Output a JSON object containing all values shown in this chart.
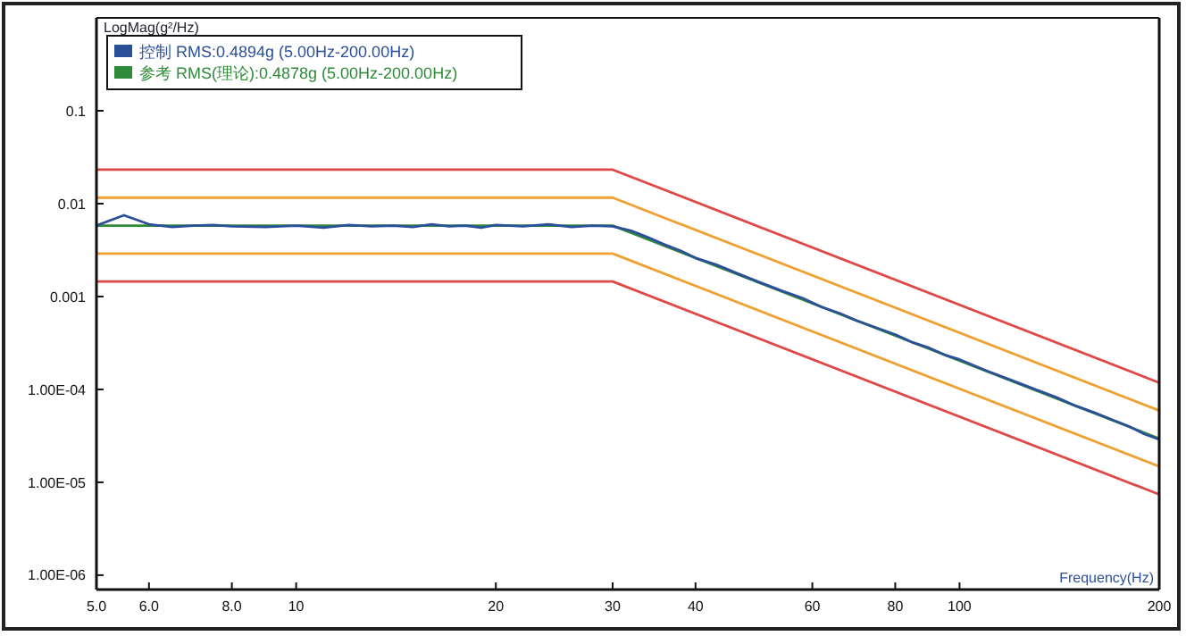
{
  "chart_data": {
    "type": "line",
    "xlabel": "Frequency(Hz)",
    "ylabel": "LogMag(g²/Hz)",
    "log": "xy",
    "xlim": [
      5,
      200
    ],
    "ylim": [
      7e-07,
      1
    ],
    "xticks": [
      {
        "value": 5,
        "label": "5.0"
      },
      {
        "value": 6,
        "label": "6.0"
      },
      {
        "value": 8,
        "label": "8.0"
      },
      10,
      20,
      30,
      40,
      60,
      80,
      100,
      200
    ],
    "yticks": [
      0.1,
      0.01,
      0.001,
      {
        "value": 0.0001,
        "label": "1.00E-04"
      },
      {
        "value": 1e-05,
        "label": "1.00E-05"
      },
      {
        "value": 1e-06,
        "label": "1.00E-06"
      }
    ],
    "grid": false,
    "legend": "top left",
    "marker": "none",
    "line_style": "solid",
    "series": [
      {
        "color": "#e04848",
        "x": [
          5,
          30,
          200
        ],
        "values": [
          0.0232,
          0.0232,
          0.000118
        ]
      },
      {
        "color": "#f0a030",
        "x": [
          5,
          30,
          200
        ],
        "values": [
          0.0116,
          0.0116,
          5.92e-05
        ]
      },
      {
        "color": "#f0a030",
        "x": [
          5,
          30,
          200
        ],
        "values": [
          0.0029,
          0.0029,
          1.48e-05
        ]
      },
      {
        "color": "#e04848",
        "x": [
          5,
          30,
          200
        ],
        "values": [
          0.00145,
          0.00145,
          7.4e-06
        ]
      },
      {
        "name": "参考 RMS(理论):0.4878g (5.00Hz-200.00Hz)",
        "color": "#2e8b3a",
        "x": [
          5,
          30,
          200
        ],
        "values": [
          0.0058,
          0.0058,
          2.96e-05
        ]
      },
      {
        "name": "控制 RMS:0.4894g (5.00Hz-200.00Hz)",
        "color": "#2c4f9a",
        "x": [
          5,
          5.5,
          6,
          6.5,
          7,
          7.5,
          8,
          9,
          10,
          11,
          12,
          13,
          14,
          15,
          16,
          17,
          18,
          19,
          20,
          22,
          24,
          26,
          28,
          30,
          32,
          34,
          36,
          38,
          40,
          43,
          46,
          50,
          54,
          58,
          62,
          66,
          70,
          75,
          80,
          85,
          90,
          95,
          100,
          110,
          120,
          130,
          140,
          150,
          160,
          170,
          180,
          190,
          200
        ],
        "values": [
          0.0058,
          0.0075,
          0.006,
          0.0056,
          0.0058,
          0.0059,
          0.0057,
          0.0056,
          0.0058,
          0.0055,
          0.0059,
          0.0057,
          0.0058,
          0.0056,
          0.006,
          0.0057,
          0.0058,
          0.0055,
          0.0059,
          0.0057,
          0.006,
          0.0056,
          0.0058,
          0.0057,
          0.0051,
          0.0043,
          0.0036,
          0.0031,
          0.0026,
          0.0022,
          0.0018,
          0.00142,
          0.00115,
          0.00096,
          0.00077,
          0.00066,
          0.00055,
          0.00046,
          0.00039,
          0.00032,
          0.00028,
          0.000235,
          0.00021,
          0.000158,
          0.000125,
          0.0001,
          8.2e-05,
          6.6e-05,
          5.6e-05,
          4.7e-05,
          4e-05,
          3.3e-05,
          2.9e-05
        ]
      }
    ]
  }
}
